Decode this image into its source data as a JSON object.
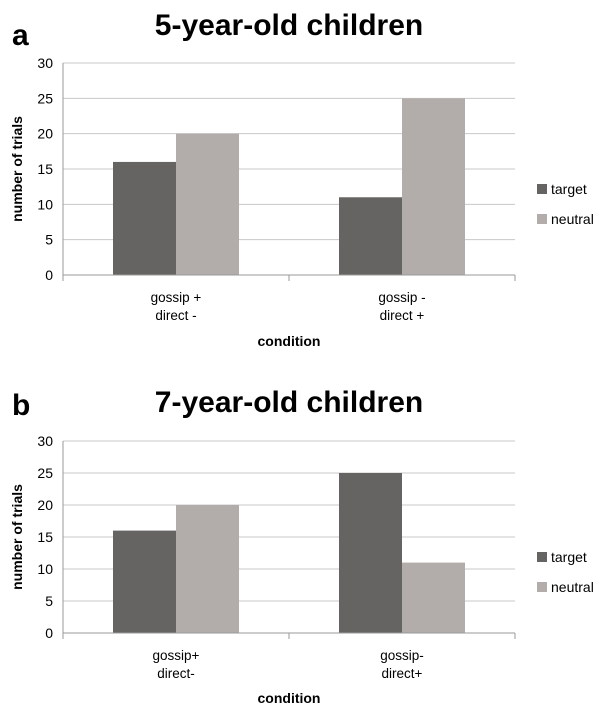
{
  "chart_data": [
    {
      "type": "bar",
      "panel": "a",
      "title": "5-year-old children",
      "xlabel": "condition",
      "ylabel": "number of trials",
      "categories": [
        [
          "gossip +",
          "direct -"
        ],
        [
          "gossip -",
          "direct +"
        ]
      ],
      "series": [
        {
          "name": "target",
          "values": [
            16,
            11
          ]
        },
        {
          "name": "neutral",
          "values": [
            20,
            25
          ]
        }
      ],
      "ylim": [
        0,
        30
      ],
      "yticks": [
        0,
        5,
        10,
        15,
        20,
        25,
        30
      ],
      "grid": true,
      "legend": "right"
    },
    {
      "type": "bar",
      "panel": "b",
      "title": "7-year-old children",
      "xlabel": "condition",
      "ylabel": "number of trials",
      "categories": [
        [
          "gossip+",
          "direct-"
        ],
        [
          "gossip-",
          "direct+"
        ]
      ],
      "series": [
        {
          "name": "target",
          "values": [
            16,
            25
          ]
        },
        {
          "name": "neutral",
          "values": [
            20,
            11
          ]
        }
      ],
      "ylim": [
        0,
        30
      ],
      "yticks": [
        0,
        5,
        10,
        15,
        20,
        25,
        30
      ],
      "grid": true,
      "legend": "right"
    }
  ],
  "colors": {
    "target": "#666462",
    "neutral": "#b2adaa",
    "grid": "#c8c8c8",
    "axis": "#9a9a9a"
  }
}
